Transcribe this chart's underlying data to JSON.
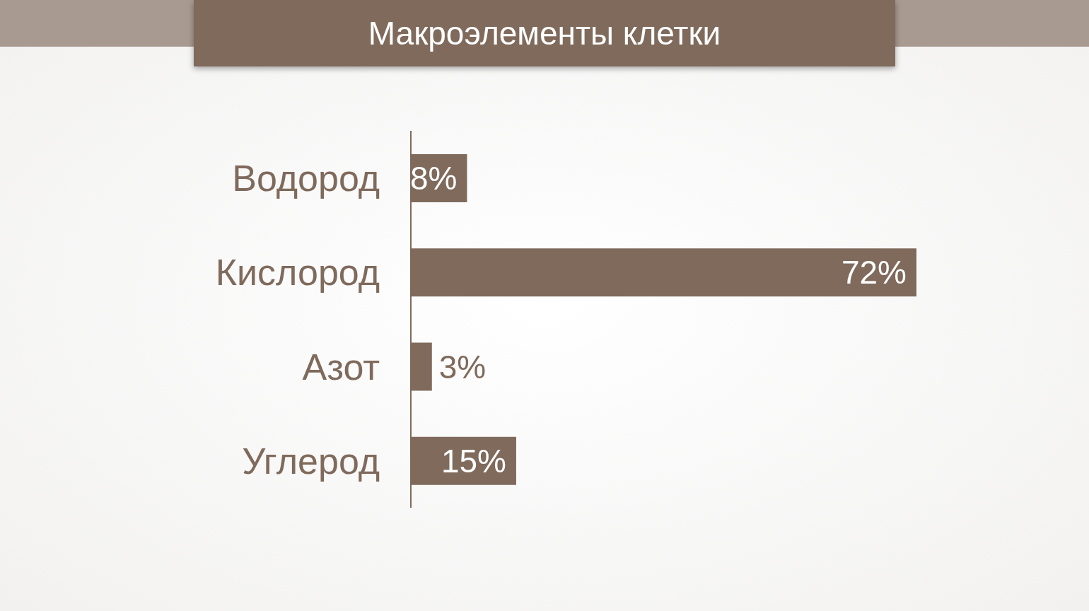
{
  "chart_data": {
    "type": "bar",
    "orientation": "horizontal",
    "title": "Макроэлементы клетки",
    "categories": [
      "Водород",
      "Кислород",
      "Азот",
      "Углерод"
    ],
    "values": [
      8,
      72,
      3,
      15
    ],
    "value_labels": [
      "8%",
      "72%",
      "3%",
      "15%"
    ],
    "color": "#7f6a5c",
    "grid": false,
    "legend": false
  }
}
